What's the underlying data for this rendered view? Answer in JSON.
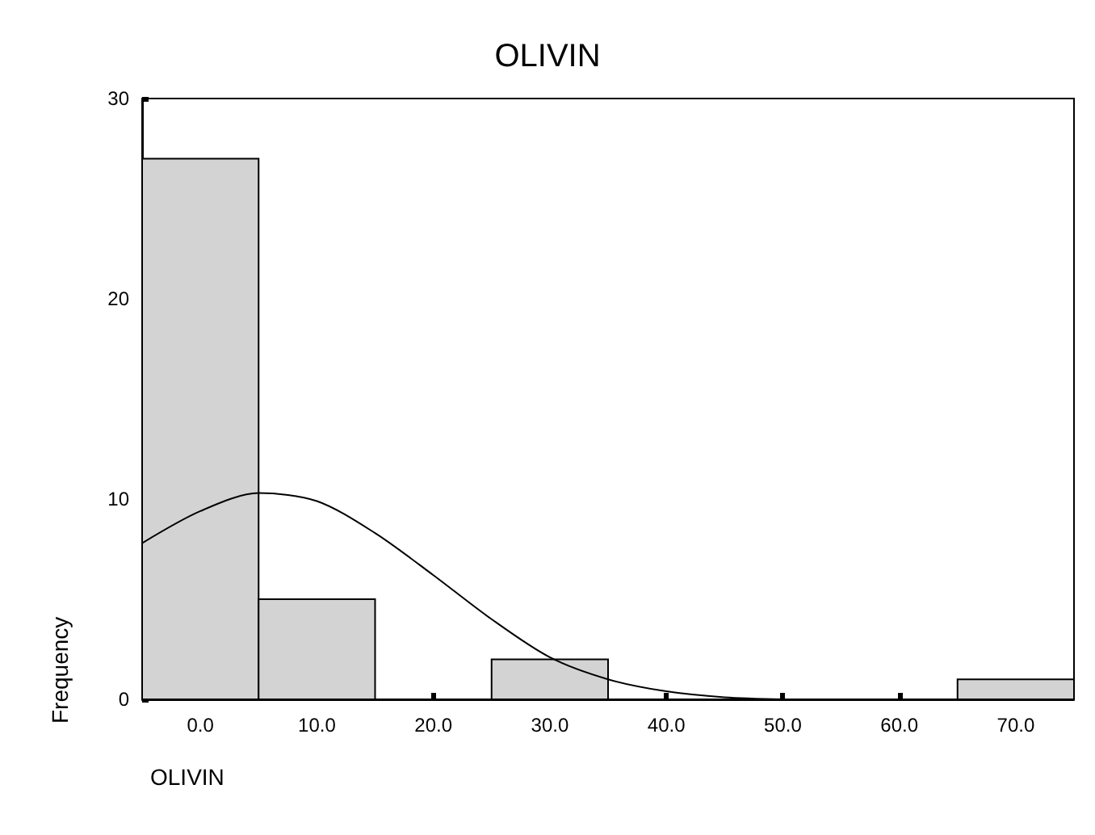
{
  "chart_data": {
    "type": "histogram",
    "title": "OLIVIN",
    "xlabel": "OLIVIN",
    "ylabel": "Frequency",
    "bins": [
      -5,
      5,
      15,
      25,
      35,
      45,
      55,
      65,
      75
    ],
    "values": [
      27,
      5,
      0,
      2,
      0,
      0,
      0,
      1
    ],
    "color": "#d3d3d3",
    "xlim": [
      -5,
      75
    ],
    "xticks": [
      {
        "value": 0,
        "label": "0.0"
      },
      {
        "value": 10,
        "label": "10.0"
      },
      {
        "value": 20,
        "label": "20.0"
      },
      {
        "value": 30,
        "label": "30.0"
      },
      {
        "value": 40,
        "label": "40.0"
      },
      {
        "value": 50,
        "label": "50.0"
      },
      {
        "value": 60,
        "label": "60.0"
      },
      {
        "value": 70,
        "label": "70.0"
      }
    ],
    "ylim": [
      0,
      30
    ],
    "yticks": [
      0,
      10,
      20,
      30
    ],
    "series": [
      {
        "type": "line",
        "color": "#000000",
        "marker": "none",
        "x": [
          -5,
          0,
          5,
          10,
          15,
          20,
          25,
          30,
          35,
          40,
          45,
          50
        ],
        "values": [
          7.8,
          9.4,
          10.3,
          9.9,
          8.3,
          6.2,
          4.0,
          2.1,
          1.0,
          0.4,
          0.1,
          0.0
        ]
      }
    ]
  }
}
